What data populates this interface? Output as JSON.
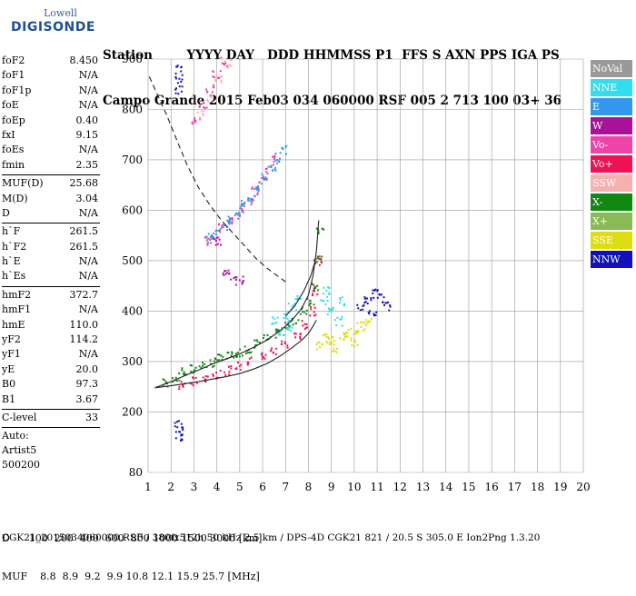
{
  "logo": {
    "line1": "Lowell",
    "line2": "DIGISONDE"
  },
  "header": {
    "line1": "Station        YYYY DAY   DDD HHMMSS P1  FFS S AXN PPS IGA PS",
    "line2": "Campo Grande 2015 Feb03 034 060000 RSF 005 2 713 100 03+ 36"
  },
  "params": [
    [
      {
        "k": "foF2",
        "v": "8.450"
      },
      {
        "k": "foF1",
        "v": "N/A"
      },
      {
        "k": "foF1p",
        "v": "N/A"
      },
      {
        "k": "foE",
        "v": "N/A"
      },
      {
        "k": "foEp",
        "v": "0.40"
      },
      {
        "k": "fxI",
        "v": "9.15"
      },
      {
        "k": "foEs",
        "v": "N/A"
      },
      {
        "k": "fmin",
        "v": "2.35"
      }
    ],
    [
      {
        "k": "MUF(D)",
        "v": "25.68"
      },
      {
        "k": "M(D)",
        "v": "3.04"
      },
      {
        "k": "D",
        "v": "N/A"
      }
    ],
    [
      {
        "k": "h`F",
        "v": "261.5"
      },
      {
        "k": "h`F2",
        "v": "261.5"
      },
      {
        "k": "h`E",
        "v": "N/A"
      },
      {
        "k": "h`Es",
        "v": "N/A"
      }
    ],
    [
      {
        "k": "hmF2",
        "v": "372.7"
      },
      {
        "k": "hmF1",
        "v": "N/A"
      },
      {
        "k": "hmE",
        "v": "110.0"
      },
      {
        "k": "yF2",
        "v": "114.2"
      },
      {
        "k": "yF1",
        "v": "N/A"
      },
      {
        "k": "yE",
        "v": "20.0"
      },
      {
        "k": "B0",
        "v": "97.3"
      },
      {
        "k": "B1",
        "v": "3.67"
      }
    ],
    [
      {
        "k": "C-level",
        "v": "33"
      }
    ]
  ],
  "auto": [
    "Auto:",
    "Artist5",
    "500200"
  ],
  "legend": [
    {
      "label": "NoVal",
      "color": "#999999"
    },
    {
      "label": "NNE",
      "color": "#33ddee"
    },
    {
      "label": "E",
      "color": "#3399ee"
    },
    {
      "label": "W",
      "color": "#aa1199"
    },
    {
      "label": "Vo-",
      "color": "#ee44aa"
    },
    {
      "label": "Vo+",
      "color": "#ee1155"
    },
    {
      "label": "SSW",
      "color": "#f5b0b0"
    },
    {
      "label": "X-",
      "color": "#118811"
    },
    {
      "label": "X+",
      "color": "#88bb55"
    },
    {
      "label": "SSE",
      "color": "#dddd11"
    },
    {
      "label": "NNW",
      "color": "#1111bb"
    }
  ],
  "bottom": {
    "d_row": "D      100  200  400  600  800 1000 1500 3000 [km]",
    "muf_row": "MUF    8.8  8.9  9.2  9.9 10.8 12.1 15.9 25.7 [MHz]"
  },
  "footer": "CGK21_2015034060000.RSF / 380fx512h 50 kHz 2.5 km / DPS-4D CGK21 821 / 20.5 S 305.0 E Ion2Png 1.3.20",
  "chart_data": {
    "type": "scatter",
    "x": {
      "range": [
        1,
        20
      ],
      "ticks": [
        1,
        2,
        3,
        4,
        5,
        6,
        7,
        8,
        9,
        10,
        11,
        12,
        13,
        14,
        15,
        16,
        17,
        18,
        19,
        20
      ],
      "unit": "MHz"
    },
    "y": {
      "range": [
        80,
        900
      ],
      "ticks": [
        80,
        200,
        300,
        400,
        500,
        600,
        700,
        800,
        900
      ],
      "unit": "km"
    },
    "grid": true,
    "series": [
      {
        "name": "X-",
        "color": "#118811",
        "points": [
          [
            1.8,
            258
          ],
          [
            2.2,
            268
          ],
          [
            2.6,
            278
          ],
          [
            3.0,
            285
          ],
          [
            3.4,
            292
          ],
          [
            3.8,
            298
          ],
          [
            4.2,
            305
          ],
          [
            4.6,
            312
          ],
          [
            5.0,
            318
          ],
          [
            5.4,
            325
          ],
          [
            5.8,
            335
          ],
          [
            6.2,
            345
          ],
          [
            6.6,
            355
          ],
          [
            7.0,
            368
          ],
          [
            7.4,
            382
          ],
          [
            7.8,
            400
          ],
          [
            8.1,
            420
          ],
          [
            8.3,
            450
          ],
          [
            8.45,
            500
          ],
          [
            8.5,
            560
          ]
        ]
      },
      {
        "name": "Vo+",
        "color": "#ee1155",
        "points": [
          [
            2.5,
            252
          ],
          [
            3.0,
            260
          ],
          [
            3.5,
            268
          ],
          [
            4.0,
            275
          ],
          [
            4.5,
            282
          ],
          [
            5.0,
            290
          ],
          [
            5.5,
            300
          ],
          [
            6.0,
            310
          ],
          [
            6.5,
            322
          ],
          [
            7.0,
            335
          ],
          [
            7.5,
            350
          ],
          [
            7.9,
            372
          ],
          [
            8.2,
            400
          ],
          [
            8.35,
            440
          ],
          [
            8.42,
            500
          ]
        ]
      },
      {
        "name": "NNE",
        "color": "#33ddee",
        "points": [
          [
            6.5,
            380
          ],
          [
            7.0,
            390
          ],
          [
            7.3,
            410
          ],
          [
            7.6,
            430
          ],
          [
            8.7,
            420
          ],
          [
            9.0,
            400
          ],
          [
            9.3,
            380
          ],
          [
            8.8,
            440
          ],
          [
            9.5,
            420
          ],
          [
            7.2,
            370
          ],
          [
            6.8,
            360
          ]
        ]
      },
      {
        "name": "SSE",
        "color": "#dddd11",
        "points": [
          [
            8.5,
            330
          ],
          [
            9.0,
            340
          ],
          [
            9.5,
            350
          ],
          [
            10.0,
            360
          ],
          [
            10.3,
            370
          ],
          [
            10.6,
            380
          ],
          [
            9.2,
            325
          ],
          [
            8.8,
            345
          ],
          [
            10.0,
            335
          ],
          [
            9.7,
            355
          ]
        ]
      },
      {
        "name": "NNW",
        "color": "#1111bb",
        "points": [
          [
            10.3,
            410
          ],
          [
            10.6,
            420
          ],
          [
            10.9,
            435
          ],
          [
            11.2,
            425
          ],
          [
            10.8,
            400
          ],
          [
            11.4,
            410
          ],
          [
            2.35,
            880
          ],
          [
            2.35,
            860
          ],
          [
            2.35,
            840
          ],
          [
            2.35,
            175
          ],
          [
            2.35,
            165
          ],
          [
            2.35,
            150
          ]
        ]
      },
      {
        "name": "Vo-",
        "color": "#ee44aa",
        "points": [
          [
            3.6,
            540
          ],
          [
            3.9,
            550
          ],
          [
            4.2,
            565
          ],
          [
            4.5,
            578
          ],
          [
            4.8,
            590
          ],
          [
            5.1,
            605
          ],
          [
            5.4,
            620
          ],
          [
            5.7,
            640
          ],
          [
            6.0,
            660
          ],
          [
            6.3,
            680
          ],
          [
            6.6,
            700
          ],
          [
            3.1,
            780
          ],
          [
            3.4,
            810
          ],
          [
            3.7,
            840
          ],
          [
            4.0,
            870
          ],
          [
            4.3,
            895
          ]
        ]
      },
      {
        "name": "E",
        "color": "#3399ee",
        "points": [
          [
            3.7,
            545
          ],
          [
            4.0,
            555
          ],
          [
            4.3,
            570
          ],
          [
            4.6,
            580
          ],
          [
            4.9,
            595
          ],
          [
            5.2,
            610
          ],
          [
            5.5,
            625
          ],
          [
            5.8,
            645
          ],
          [
            6.1,
            665
          ],
          [
            6.4,
            685
          ],
          [
            6.7,
            705
          ],
          [
            7.0,
            720
          ]
        ]
      },
      {
        "name": "W",
        "color": "#aa1199",
        "points": [
          [
            4.0,
            540
          ],
          [
            4.4,
            480
          ],
          [
            4.7,
            470
          ],
          [
            5.0,
            460
          ]
        ]
      },
      {
        "name": "SSW",
        "color": "#f5b0b0",
        "points": [
          [
            3.3,
            790
          ],
          [
            3.7,
            825
          ],
          [
            4.1,
            860
          ],
          [
            4.5,
            890
          ]
        ]
      }
    ],
    "curves": [
      {
        "name": "dashed",
        "points": [
          [
            1.05,
            865
          ],
          [
            1.4,
            830
          ],
          [
            1.8,
            790
          ],
          [
            2.2,
            745
          ],
          [
            2.7,
            690
          ],
          [
            3.2,
            645
          ],
          [
            3.7,
            610
          ],
          [
            4.2,
            580
          ],
          [
            4.7,
            555
          ],
          [
            5.2,
            530
          ],
          [
            5.7,
            505
          ],
          [
            6.2,
            485
          ],
          [
            6.7,
            468
          ],
          [
            7.1,
            455
          ]
        ]
      },
      {
        "name": "trace-upper",
        "points": [
          [
            1.3,
            248
          ],
          [
            2.0,
            260
          ],
          [
            2.6,
            272
          ],
          [
            3.2,
            283
          ],
          [
            3.8,
            295
          ],
          [
            4.4,
            305
          ],
          [
            5.0,
            315
          ],
          [
            5.6,
            328
          ],
          [
            6.2,
            343
          ],
          [
            6.8,
            362
          ],
          [
            7.3,
            383
          ],
          [
            7.7,
            405
          ],
          [
            8.0,
            432
          ],
          [
            8.2,
            470
          ],
          [
            8.35,
            520
          ],
          [
            8.45,
            580
          ]
        ]
      },
      {
        "name": "trace-lower",
        "points": [
          [
            1.3,
            248
          ],
          [
            2.0,
            252
          ],
          [
            2.6,
            256
          ],
          [
            3.2,
            260
          ],
          [
            3.8,
            265
          ],
          [
            4.4,
            270
          ],
          [
            5.0,
            276
          ],
          [
            5.6,
            285
          ],
          [
            6.2,
            296
          ],
          [
            6.8,
            312
          ],
          [
            7.3,
            328
          ],
          [
            7.7,
            342
          ],
          [
            8.0,
            356
          ],
          [
            8.2,
            370
          ],
          [
            8.35,
            382
          ]
        ]
      },
      {
        "name": "trace-mid",
        "points": [
          [
            7.0,
            390
          ],
          [
            7.4,
            410
          ],
          [
            7.8,
            440
          ],
          [
            8.1,
            470
          ],
          [
            8.3,
            500
          ]
        ]
      }
    ]
  }
}
